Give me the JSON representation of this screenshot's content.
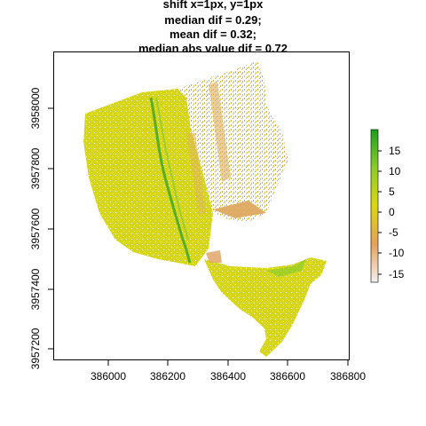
{
  "title_lines": [
    "shift x=1px, y=1px",
    "median dif = 0.29;",
    "mean dif = 0.32;",
    "median abs value dif = 0.72"
  ],
  "x_ticks": [
    "386000",
    "386200",
    "386400",
    "386600",
    "386800"
  ],
  "y_ticks": [
    "3957200",
    "3957400",
    "3957600",
    "3957800",
    "3958000"
  ],
  "legend": {
    "ticks": [
      "15",
      "10",
      "5",
      "0",
      "-5",
      "-10",
      "-15"
    ],
    "colors": {
      "top": "#1f9e1f",
      "upper": "#8ccc2a",
      "mid": "#dcd614",
      "lower": "#e3a25a",
      "bottom": "#f6f0f0"
    }
  },
  "map_colors": {
    "base": "#d8d61a",
    "greenish": "#b7cf2a",
    "orange": "#dcaa55",
    "dark_green": "#3ea822"
  }
}
